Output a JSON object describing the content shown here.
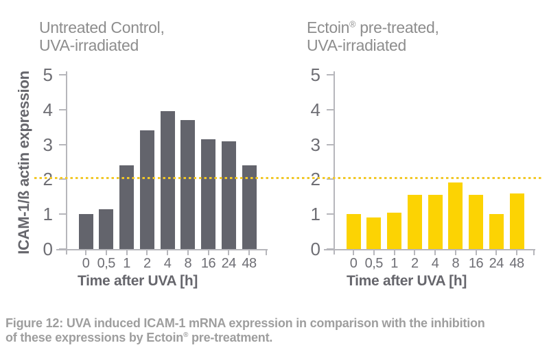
{
  "colors": {
    "bar_gray": "#63646c",
    "bar_yellow": "#FCD303",
    "reference_line": "#F2C828",
    "axis_line": "#b6b6bb",
    "title_text": "#8d8d8d",
    "tick_text": "#6e6e74",
    "bold_label_text": "#66666c",
    "caption_text": "#9e9e9e"
  },
  "titles": {
    "left": {
      "line1_pre": "Untreated Control,",
      "line1_sup": "",
      "line1_post": "",
      "line2": "UVA-irradiated"
    },
    "right": {
      "line1_pre": "Ectoin",
      "line1_sup": "®",
      "line1_post": " pre-treated,",
      "line2": "UVA-irradiated"
    }
  },
  "caption": {
    "line1": "Figure 12: UVA induced ICAM-1 mRNA expression in comparison with the inhibition",
    "line2_pre": "of these expressions by Ectoin",
    "line2_sup": "®",
    "line2_post": " pre-treatment."
  },
  "chart_data": {
    "type": "bar",
    "categories": [
      "0",
      "0,5",
      "1",
      "2",
      "4",
      "8",
      "16",
      "24",
      "48"
    ],
    "series": [
      {
        "name": "Untreated Control, UVA-irradiated",
        "color": "#63646c",
        "values": [
          1.0,
          1.15,
          2.4,
          3.4,
          3.95,
          3.7,
          3.15,
          3.1,
          2.4
        ]
      },
      {
        "name": "Ectoin pre-treated, UVA-irradiated",
        "color": "#FCD303",
        "values": [
          1.0,
          0.9,
          1.05,
          1.55,
          1.55,
          1.9,
          1.55,
          1.0,
          1.6
        ]
      }
    ],
    "ylabel": "ICAM-1/ß actin expression",
    "xlabel": "Time after UVA [h]",
    "ylim": [
      0,
      5
    ],
    "yticks": [
      0,
      1,
      2,
      3,
      4,
      5
    ],
    "reference_line_y": 2.05,
    "reference_line_color": "#F2C828",
    "reference_line_style": "dotted",
    "grid": false,
    "legend": false
  }
}
